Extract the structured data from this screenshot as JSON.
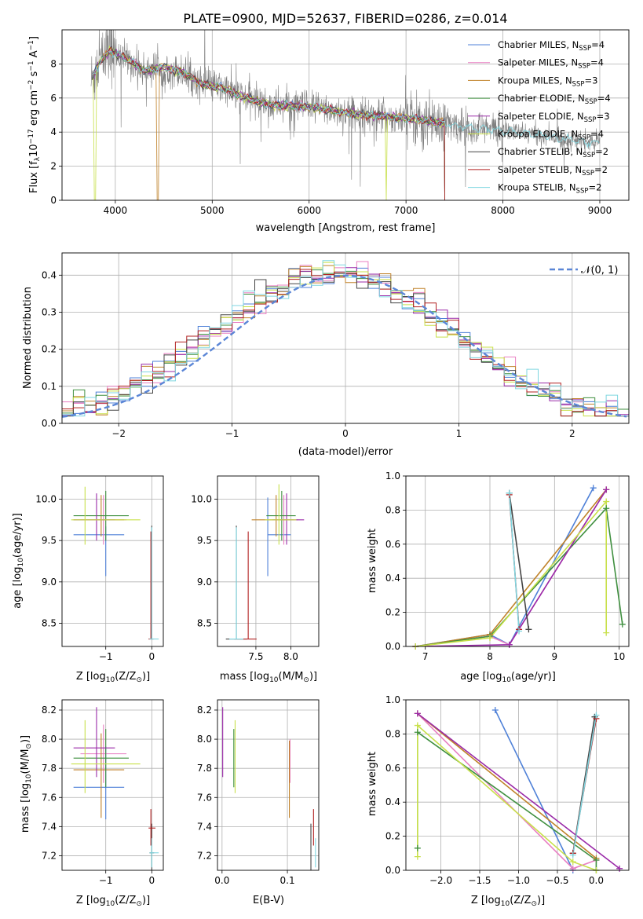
{
  "figure": {
    "title": "PLATE=0900, MJD=52637, FIBERID=0286, z=0.014"
  },
  "colors": {
    "models": [
      "#4f81d8",
      "#e87fc2",
      "#c0822a",
      "#3f8f3f",
      "#9a2aa8",
      "#c8e04a",
      "#444444",
      "#b22222",
      "#7fd6e0"
    ],
    "data": "#808080",
    "grid": "#b0b0b0",
    "gauss": "#5b86d6",
    "orange": "#e8782a",
    "darkgreen": "#5b8060",
    "teal": "#6aa8b0",
    "olive": "#9aa040"
  },
  "legend": {
    "labels": [
      "Chabrier MILES, N",
      "Salpeter MILES, N",
      "Kroupa MILES, N",
      "Chabrier ELODIE, N",
      "Salpeter ELODIE, N",
      "Kroupa ELODIE, N",
      "Chabrier STELIB, N",
      "Salpeter STELIB, N",
      "Kroupa STELIB, N"
    ],
    "subs": [
      "SSP",
      "SSP",
      "SSP",
      "SSP",
      "SSP",
      "SSP",
      "SSP",
      "SSP",
      "SSP"
    ],
    "eqs": [
      "=4",
      "=4",
      "=3",
      "=4",
      "=3",
      "=4",
      "=2",
      "=2",
      "=2"
    ],
    "gauss_label": "𝒩(0, 1)"
  },
  "chart_data": [
    {
      "id": "spectrum",
      "type": "line",
      "xlabel": "wavelength [Angstrom, rest frame]",
      "ylabel": "Flux [f",
      "ylabel_sub": "λ",
      "ylabel_rest": "10",
      "ylabel_exp": "−17",
      "ylabel_tail": " erg cm",
      "ylabel_exp2": "−2",
      "ylabel_tail2": " s",
      "ylabel_exp3": "−1",
      "ylabel_tail3": " A",
      "ylabel_exp4": "−1",
      "ylabel_end": "]",
      "xlim": [
        3450,
        9300
      ],
      "ylim": [
        0,
        10
      ],
      "xticks": [
        4000,
        5000,
        6000,
        7000,
        8000,
        9000
      ],
      "yticks": [
        0,
        2,
        4,
        6,
        8
      ],
      "continuum": [
        [
          3750,
          7.0
        ],
        [
          3850,
          8.2
        ],
        [
          3950,
          8.8
        ],
        [
          4050,
          8.5
        ],
        [
          4200,
          8.0
        ],
        [
          4300,
          7.6
        ],
        [
          4500,
          7.8
        ],
        [
          4700,
          7.5
        ],
        [
          4900,
          6.8
        ],
        [
          5100,
          6.6
        ],
        [
          5300,
          6.1
        ],
        [
          5600,
          5.6
        ],
        [
          6000,
          5.5
        ],
        [
          6300,
          5.2
        ],
        [
          6600,
          5.0
        ],
        [
          7000,
          4.8
        ],
        [
          7300,
          4.6
        ],
        [
          7500,
          4.4
        ],
        [
          7800,
          4.2
        ],
        [
          8000,
          4.1
        ],
        [
          8300,
          3.9
        ],
        [
          8600,
          3.6
        ],
        [
          8900,
          3.4
        ],
        [
          9000,
          3.4
        ]
      ],
      "model_end_wl": [
        7400,
        7400,
        7400,
        7400,
        7400,
        7400,
        7400,
        7400,
        9000
      ]
    },
    {
      "id": "residuals",
      "type": "histogram",
      "xlabel": "(data-model)/error",
      "ylabel": "Normed distribution",
      "xlim": [
        -2.5,
        2.5
      ],
      "ylim": [
        0,
        0.46
      ],
      "xticks": [
        -2,
        -1,
        0,
        1,
        2
      ],
      "xtick_labels": [
        "−2",
        "−1",
        "0",
        "1",
        "2"
      ],
      "yticks": [
        0.0,
        0.1,
        0.2,
        0.3,
        0.4
      ],
      "ytick_labels": [
        "0.0",
        "0.1",
        "0.2",
        "0.3",
        "0.4"
      ],
      "bin_width": 0.1
    },
    {
      "id": "age-z",
      "type": "errorbar",
      "xlabel": "Z [log",
      "xlabel_sub": "10",
      "xlabel_rest": "(Z/Z",
      "xlabel_sun": "⊙",
      "xlabel_end": ")]",
      "ylabel": "age  [log",
      "ylabel_sub": "10",
      "ylabel_rest": "(age/yr)]",
      "xlim": [
        -1.95,
        0.25
      ],
      "ylim": [
        8.22,
        10.28
      ],
      "xticks": [
        -1,
        0
      ],
      "xtick_labels": [
        "−1",
        "0"
      ],
      "yticks": [
        8.5,
        9.0,
        9.5,
        10.0
      ],
      "ytick_labels": [
        "8.5",
        "9.0",
        "9.5",
        "10.0"
      ],
      "points": [
        {
          "c": 0,
          "x": -1.0,
          "xerr": [
            0.7,
            0.4
          ],
          "y": 9.57,
          "yerr": [
            0.5,
            0.1
          ]
        },
        {
          "c": 1,
          "x": -1.05,
          "xerr": [
            0.5,
            0.5
          ],
          "y": 9.75,
          "yerr": [
            0.3,
            0.3
          ]
        },
        {
          "c": 2,
          "x": -1.1,
          "xerr": [
            0.6,
            0.5
          ],
          "y": 9.75,
          "yerr": [
            0.2,
            0.3
          ]
        },
        {
          "c": 3,
          "x": -1.0,
          "xerr": [
            0.7,
            0.5
          ],
          "y": 9.8,
          "yerr": [
            0.3,
            0.3
          ]
        },
        {
          "c": 4,
          "x": -1.2,
          "xerr": [
            0.5,
            0.4
          ],
          "y": 9.75,
          "yerr": [
            0.25,
            0.32
          ]
        },
        {
          "c": 5,
          "x": -1.45,
          "xerr": [
            0.3,
            1.2
          ],
          "y": 9.75,
          "yerr": [
            0.3,
            0.4
          ]
        },
        {
          "c": 6,
          "x": 0.0,
          "xerr": [
            0.05,
            0.05
          ],
          "y": 8.31,
          "yerr": [
            0.0,
            1.37
          ]
        },
        {
          "c": 7,
          "x": -0.02,
          "xerr": [
            0.05,
            0.05
          ],
          "y": 8.31,
          "yerr": [
            0.0,
            1.3
          ]
        },
        {
          "c": 8,
          "x": 0.0,
          "xerr": [
            0.05,
            0.15
          ],
          "y": 8.31,
          "yerr": [
            0.0,
            1.35
          ]
        }
      ]
    },
    {
      "id": "age-mass",
      "type": "errorbar",
      "xlabel": "mass [log",
      "xlabel_sub": "10",
      "xlabel_rest": "(M/M",
      "xlabel_sun": "⊙",
      "xlabel_end": ")]",
      "xlim": [
        6.95,
        8.4
      ],
      "ylim": [
        8.22,
        10.28
      ],
      "xticks": [
        7.5,
        8.0
      ],
      "xtick_labels": [
        "7.5",
        "8.0"
      ],
      "yticks": [
        8.5,
        9.0,
        9.5,
        10.0
      ],
      "ytick_labels": [
        "8.5",
        "9.0",
        "9.5",
        "10.0"
      ],
      "points": [
        {
          "c": 0,
          "x": 7.67,
          "xerr": [
            0.0,
            0.33
          ],
          "y": 9.57,
          "yerr": [
            0.5,
            0.45
          ]
        },
        {
          "c": 1,
          "x": 7.9,
          "xerr": [
            0.2,
            0.2
          ],
          "y": 9.75,
          "yerr": [
            0.3,
            0.3
          ]
        },
        {
          "c": 2,
          "x": 7.79,
          "xerr": [
            0.35,
            0.25
          ],
          "y": 9.75,
          "yerr": [
            0.2,
            0.3
          ]
        },
        {
          "c": 3,
          "x": 7.87,
          "xerr": [
            0.22,
            0.2
          ],
          "y": 9.8,
          "yerr": [
            0.3,
            0.3
          ]
        },
        {
          "c": 4,
          "x": 7.94,
          "xerr": [
            0.2,
            0.25
          ],
          "y": 9.75,
          "yerr": [
            0.3,
            0.32
          ]
        },
        {
          "c": 5,
          "x": 7.83,
          "xerr": [
            0.2,
            0.25
          ],
          "y": 9.75,
          "yerr": [
            0.3,
            0.43
          ]
        },
        {
          "c": 6,
          "x": 7.22,
          "xerr": [
            0.15,
            0.15
          ],
          "y": 8.31,
          "yerr": [
            0.0,
            1.37
          ]
        },
        {
          "c": 7,
          "x": 7.39,
          "xerr": [
            0.2,
            0.12
          ],
          "y": 8.31,
          "yerr": [
            0.0,
            1.3
          ]
        },
        {
          "c": 8,
          "x": 7.22,
          "xerr": [
            0.1,
            0.1
          ],
          "y": 8.31,
          "yerr": [
            0.0,
            1.35
          ]
        }
      ]
    },
    {
      "id": "weight-age",
      "type": "line",
      "xlabel": "age  [log",
      "xlabel_sub": "10",
      "xlabel_rest": "(age/yr)]",
      "ylabel": "mass weight",
      "xlim": [
        6.7,
        10.15
      ],
      "ylim": [
        0,
        1
      ],
      "xticks": [
        7,
        8,
        9,
        10
      ],
      "yticks": [
        0.0,
        0.2,
        0.4,
        0.6,
        0.8,
        1.0
      ],
      "ytick_labels": [
        "0.0",
        "0.2",
        "0.4",
        "0.6",
        "0.8",
        "1.0"
      ],
      "series": [
        {
          "c": 0,
          "x": [
            6.85,
            8.0,
            8.3,
            9.6
          ],
          "y": [
            0.0,
            0.07,
            0.01,
            0.93
          ]
        },
        {
          "c": 1,
          "x": [
            6.85,
            8.0,
            8.3,
            9.8
          ],
          "y": [
            0.0,
            0.06,
            0.01,
            0.92
          ]
        },
        {
          "c": 2,
          "x": [
            6.85,
            8.0,
            9.8
          ],
          "y": [
            0.0,
            0.07,
            0.92
          ]
        },
        {
          "c": 3,
          "x": [
            6.85,
            8.0,
            9.8,
            10.05
          ],
          "y": [
            0.0,
            0.06,
            0.81,
            0.13
          ]
        },
        {
          "c": 4,
          "x": [
            6.85,
            8.3,
            9.8
          ],
          "y": [
            0.0,
            0.01,
            0.92
          ]
        },
        {
          "c": 5,
          "x": [
            6.85,
            8.0,
            9.8,
            9.8
          ],
          "y": [
            0.0,
            0.05,
            0.85,
            0.08
          ]
        },
        {
          "c": 6,
          "x": [
            8.3,
            8.6
          ],
          "y": [
            0.9,
            0.1
          ]
        },
        {
          "c": 7,
          "x": [
            8.3,
            8.45
          ],
          "y": [
            0.89,
            0.1
          ]
        },
        {
          "c": 8,
          "x": [
            8.3,
            8.45
          ],
          "y": [
            0.9,
            0.09
          ]
        }
      ]
    },
    {
      "id": "mass-z",
      "type": "errorbar",
      "xlabel": "Z [log",
      "xlabel_sub": "10",
      "xlabel_rest": "(Z/Z",
      "xlabel_sun": "⊙",
      "xlabel_end": ")]",
      "ylabel": "mass [log",
      "ylabel_sub": "10",
      "ylabel_rest": "(M/M",
      "ylabel_sun": "⊙",
      "ylabel_end": ")]",
      "xlim": [
        -1.95,
        0.25
      ],
      "ylim": [
        7.1,
        8.27
      ],
      "xticks": [
        -1,
        0
      ],
      "xtick_labels": [
        "−1",
        "0"
      ],
      "yticks": [
        7.2,
        7.4,
        7.6,
        7.8,
        8.0,
        8.2
      ],
      "ytick_labels": [
        "7.2",
        "7.4",
        "7.6",
        "7.8",
        "8.0",
        "8.2"
      ],
      "points": [
        {
          "c": 0,
          "x": -1.0,
          "xerr": [
            0.7,
            0.4
          ],
          "y": 7.67,
          "yerr": [
            0.22,
            0.28
          ]
        },
        {
          "c": 1,
          "x": -1.05,
          "xerr": [
            0.5,
            0.5
          ],
          "y": 7.9,
          "yerr": [
            0.2,
            0.2
          ]
        },
        {
          "c": 2,
          "x": -1.1,
          "xerr": [
            0.6,
            0.5
          ],
          "y": 7.79,
          "yerr": [
            0.33,
            0.25
          ]
        },
        {
          "c": 3,
          "x": -1.0,
          "xerr": [
            0.7,
            0.5
          ],
          "y": 7.87,
          "yerr": [
            0.2,
            0.2
          ]
        },
        {
          "c": 4,
          "x": -1.2,
          "xerr": [
            0.5,
            0.4
          ],
          "y": 7.94,
          "yerr": [
            0.2,
            0.28
          ]
        },
        {
          "c": 5,
          "x": -1.45,
          "xerr": [
            0.3,
            1.2
          ],
          "y": 7.83,
          "yerr": [
            0.2,
            0.3
          ]
        },
        {
          "c": 6,
          "x": 0.0,
          "xerr": [
            0.05,
            0.05
          ],
          "y": 7.22,
          "yerr": [
            0.14,
            0.2
          ]
        },
        {
          "c": 7,
          "x": -0.02,
          "xerr": [
            0.05,
            0.1
          ],
          "y": 7.39,
          "yerr": [
            0.12,
            0.13
          ]
        },
        {
          "c": 8,
          "x": 0.0,
          "xerr": [
            0.05,
            0.15
          ],
          "y": 7.22,
          "yerr": [
            0.1,
            0.1
          ]
        }
      ]
    },
    {
      "id": "mass-ebv",
      "type": "errorbar",
      "xlabel": "E(B-V)",
      "xlim": [
        -0.007,
        0.148
      ],
      "ylim": [
        7.1,
        8.27
      ],
      "xticks": [
        0.0,
        0.1
      ],
      "xtick_labels": [
        "0.0",
        "0.1"
      ],
      "yticks": [
        7.2,
        7.4,
        7.6,
        7.8,
        8.0,
        8.2
      ],
      "ytick_labels": [
        "7.2",
        "7.4",
        "7.6",
        "7.8",
        "8.0",
        "8.2"
      ],
      "points": [
        {
          "c": 1,
          "x": 0.104,
          "xerr": [
            0,
            0
          ],
          "y": 7.9,
          "yerr": [
            0.2,
            0.1
          ]
        },
        {
          "c": 2,
          "x": 0.103,
          "xerr": [
            0,
            0
          ],
          "y": 7.79,
          "yerr": [
            0.33,
            0.2
          ]
        },
        {
          "c": 4,
          "x": 0.001,
          "xerr": [
            0,
            0
          ],
          "y": 7.94,
          "yerr": [
            0.2,
            0.28
          ]
        },
        {
          "c": 5,
          "x": 0.02,
          "xerr": [
            0,
            0
          ],
          "y": 7.83,
          "yerr": [
            0.2,
            0.3
          ]
        },
        {
          "c": 3,
          "x": 0.018,
          "xerr": [
            0,
            0
          ],
          "y": 7.87,
          "yerr": [
            0.2,
            0.2
          ]
        },
        {
          "c": 6,
          "x": 0.136,
          "xerr": [
            0,
            0
          ],
          "y": 7.25,
          "yerr": [
            0.17,
            0.17
          ]
        },
        {
          "c": 7,
          "x": 0.14,
          "xerr": [
            0,
            0
          ],
          "y": 7.39,
          "yerr": [
            0.12,
            0.13
          ]
        },
        {
          "c": 8,
          "x": 0.143,
          "xerr": [
            0,
            0
          ],
          "y": 7.22,
          "yerr": [
            0.1,
            0.1
          ]
        }
      ]
    },
    {
      "id": "weight-z",
      "type": "line",
      "xlabel": "Z [log",
      "xlabel_sub": "10",
      "xlabel_rest": "(Z/Z",
      "xlabel_sun": "⊙",
      "xlabel_end": ")]",
      "ylabel": "mass weight",
      "xlim": [
        -2.45,
        0.42
      ],
      "ylim": [
        0,
        1
      ],
      "xticks": [
        -2.0,
        -1.5,
        -1.0,
        -0.5,
        0.0
      ],
      "xtick_labels": [
        "−2.0",
        "−1.5",
        "−1.0",
        "−0.5",
        "0.0"
      ],
      "yticks": [
        0.0,
        0.2,
        0.4,
        0.6,
        0.8,
        1.0
      ],
      "ytick_labels": [
        "0.0",
        "0.2",
        "0.4",
        "0.6",
        "0.8",
        "1.0"
      ],
      "series": [
        {
          "c": 0,
          "x": [
            -1.3,
            -0.3
          ],
          "y": [
            0.94,
            0.0
          ]
        },
        {
          "c": 1,
          "x": [
            -2.3,
            -0.3,
            0.0
          ],
          "y": [
            0.92,
            0.01,
            0.06
          ]
        },
        {
          "c": 2,
          "x": [
            -2.3,
            0.0
          ],
          "y": [
            0.92,
            0.07
          ]
        },
        {
          "c": 3,
          "x": [
            -2.3,
            -2.3,
            -0.0,
            0.0
          ],
          "y": [
            0.13,
            0.81,
            0.06,
            0.0
          ]
        },
        {
          "c": 4,
          "x": [
            -2.3,
            0.3
          ],
          "y": [
            0.92,
            0.01
          ]
        },
        {
          "c": 5,
          "x": [
            -2.3,
            -2.3,
            -0.3,
            0.0
          ],
          "y": [
            0.08,
            0.85,
            0.05,
            0.0
          ]
        },
        {
          "c": 6,
          "x": [
            -0.02,
            -0.3
          ],
          "y": [
            0.9,
            0.1
          ]
        },
        {
          "c": 7,
          "x": [
            0.0,
            -0.3
          ],
          "y": [
            0.89,
            0.1
          ]
        },
        {
          "c": 8,
          "x": [
            0.0,
            -0.3
          ],
          "y": [
            0.91,
            0.09
          ]
        }
      ]
    }
  ]
}
